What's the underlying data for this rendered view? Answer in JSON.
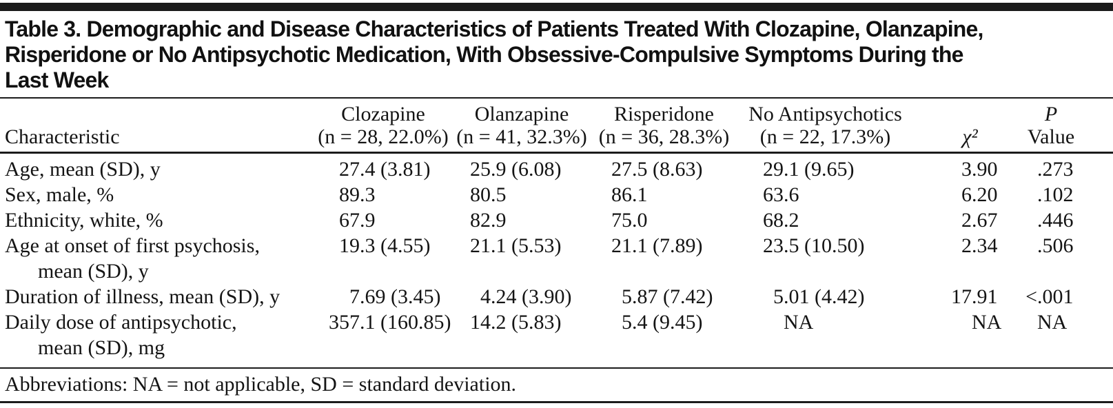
{
  "title_lines": [
    "Table 3. Demographic and Disease Characteristics of Patients Treated With Clozapine, Olanzapine,",
    "Risperidone or No Antipsychotic Medication, With Obsessive-Compulsive Symptoms During the",
    "Last Week"
  ],
  "colors": {
    "text": "#141414",
    "rule": "#1b1b1b",
    "background": "#ffffff"
  },
  "table": {
    "row_header_label": "Characteristic",
    "columns": [
      {
        "key": "clozapine",
        "name": "Clozapine",
        "sub": "(n = 28, 22.0%)"
      },
      {
        "key": "olanzapine",
        "name": "Olanzapine",
        "sub": "(n = 41, 32.3%)"
      },
      {
        "key": "risperidone",
        "name": "Risperidone",
        "sub": "(n = 36, 28.3%)"
      },
      {
        "key": "no-antipsychotics",
        "name": "No Antipsychotics",
        "sub": "(n = 22, 17.3%)"
      },
      {
        "key": "chi-square",
        "name": "χ²",
        "sub": ""
      },
      {
        "key": "p-value",
        "name": "P",
        "sub": "Value"
      }
    ],
    "rows": [
      {
        "label_lines": [
          "Age, mean (SD), y"
        ],
        "values": [
          "27.4 (3.81)",
          "25.9 (6.08)",
          "27.5 (8.63)",
          "29.1 (9.65)",
          "3.90",
          ".273"
        ]
      },
      {
        "label_lines": [
          "Sex, male, %"
        ],
        "values": [
          "89.3",
          "80.5",
          "86.1",
          "63.6",
          "6.20",
          ".102"
        ]
      },
      {
        "label_lines": [
          "Ethnicity, white, %"
        ],
        "values": [
          "67.9",
          "82.9",
          "75.0",
          "68.2",
          "2.67",
          ".446"
        ]
      },
      {
        "label_lines": [
          "Age at onset of first psychosis,",
          "mean (SD), y"
        ],
        "values": [
          "19.3 (4.55)",
          "21.1 (5.53)",
          "21.1 (7.89)",
          "23.5 (10.50)",
          "2.34",
          ".506"
        ]
      },
      {
        "label_lines": [
          "Duration of illness, mean (SD), y"
        ],
        "values": [
          "7.69 (3.45)",
          "4.24 (3.90)",
          "5.87 (7.42)",
          "5.01 (4.42)",
          "17.91",
          "<.001"
        ]
      },
      {
        "label_lines": [
          "Daily dose of antipsychotic,",
          "mean (SD), mg"
        ],
        "values": [
          "357.1 (160.85)",
          "14.2 (5.83)",
          "5.4 (9.45)",
          "NA",
          "NA",
          "NA"
        ]
      }
    ]
  },
  "footnote": "Abbreviations: NA = not applicable, SD = standard deviation."
}
